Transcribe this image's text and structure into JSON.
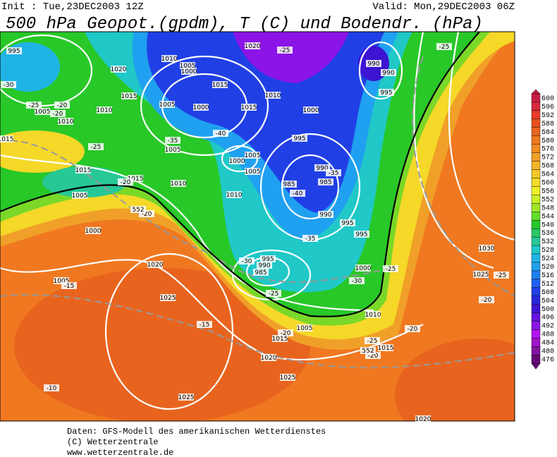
{
  "header": {
    "init": "Init : Tue,23DEC2003 12Z",
    "valid": "Valid: Mon,29DEC2003 06Z",
    "title": "500 hPa Geopot.(gpdm), T (C) und Bodendr. (hPa)"
  },
  "map": {
    "labels": [
      "995",
      "1020",
      "1020",
      "-25",
      "-25",
      "990",
      "990",
      "995",
      "1010",
      "1005",
      "1000",
      "-30",
      "1015",
      "1015",
      "1010",
      "-25",
      "-20",
      "1005",
      "-20",
      "1010",
      "1010",
      "1005",
      "1000",
      "1015",
      "1000",
      "-40",
      "995",
      "-35",
      "1005",
      "-25",
      "1005",
      "1000",
      "1005",
      "990",
      "-35",
      "1015",
      "1015",
      "-20",
      "1010",
      "1005",
      "985",
      "-40",
      "985",
      "1010",
      "-20",
      "990",
      "995",
      "995",
      "1000",
      "-35",
      "995",
      "-30",
      "990",
      "985",
      "1000",
      "-25",
      "1020",
      "1005",
      "-15",
      "-30",
      "-25",
      "1025",
      "-15",
      "1010",
      "1005",
      "-20",
      "1015",
      "-20",
      "-25",
      "1015",
      "-20",
      "1020",
      "1025",
      "-10",
      "1025",
      "1030",
      "1025",
      "-25",
      "-20",
      "1015",
      "1020",
      "552",
      "552"
    ]
  },
  "colorbar": {
    "labels": [
      600,
      596,
      592,
      588,
      584,
      580,
      576,
      572,
      568,
      564,
      560,
      556,
      552,
      548,
      544,
      540,
      536,
      532,
      528,
      524,
      520,
      516,
      512,
      508,
      504,
      500,
      496,
      492,
      488,
      484,
      480,
      476
    ],
    "colors": [
      "#c81e46",
      "#d8283c",
      "#e83c28",
      "#e8501e",
      "#e8641e",
      "#f07820",
      "#f08c20",
      "#f0a028",
      "#f5b428",
      "#f5c828",
      "#f5dc28",
      "#f0f028",
      "#c8f028",
      "#a0e628",
      "#64dc28",
      "#28c828",
      "#28c864",
      "#28c896",
      "#20c8c8",
      "#20b4e6",
      "#20a0f0",
      "#2080f0",
      "#2060f0",
      "#2040e6",
      "#2828dc",
      "#3c14d2",
      "#6414dc",
      "#8c14e6",
      "#b414f0",
      "#a014c8",
      "#8214a0",
      "#640a78"
    ]
  },
  "footer": {
    "lines": [
      "Daten: GFS-Modell des amerikanischen Wetterdienstes",
      "(C) Wetterzentrale",
      "www.wetterzentrale.de"
    ]
  }
}
